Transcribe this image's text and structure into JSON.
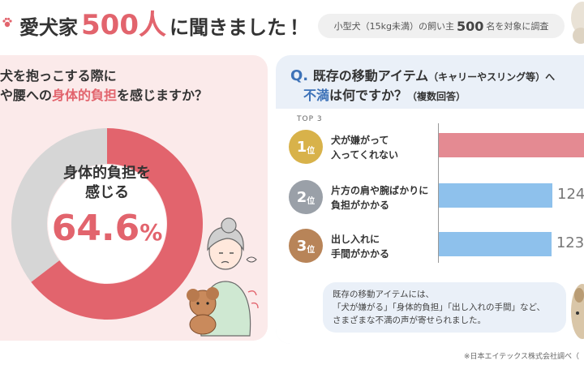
{
  "header": {
    "title_prefix": "愛犬家",
    "title_number": "500人",
    "title_suffix": "に聞きました",
    "title_mark": "！",
    "survey_pre": "小型犬（15kg未満）の飼い主",
    "survey_number": "500",
    "survey_post": "名を対象に調査"
  },
  "left": {
    "question_line1": "犬を抱っこする際に",
    "question_line2_pre": "や腰への",
    "question_line2_hl": "身体的負担",
    "question_line2_post": "を感じますか？",
    "center_line1": "身体的負担を",
    "center_line2": "感じる",
    "center_value": "64.6",
    "center_unit": "%"
  },
  "right": {
    "q_mark": "Q.",
    "q_line1": "既存の移動アイテム",
    "q_line1_small": "（キャリーやスリング等）へ",
    "q_line2_hl": "不満",
    "q_line2": "は何ですか？",
    "q_line2_small": "（複数回答）",
    "top_label": "TOP 3",
    "ranks": [
      {
        "num": "1",
        "suffix": "位",
        "line1": "犬が嫌がって",
        "line2": "入ってくれない"
      },
      {
        "num": "2",
        "suffix": "位",
        "line1": "片方の肩や腕ばかりに",
        "line2": "負担がかかる"
      },
      {
        "num": "3",
        "suffix": "位",
        "line1": "出し入れに",
        "line2": "手間がかかる"
      }
    ],
    "bubble_line1": "既存の移動アイテムには、",
    "bubble_line2": "「犬が嫌がる」「身体的負担」「出し入れの手間」など、",
    "bubble_line3": "さまざまな不満の声が寄せられました。"
  },
  "footnote": "※日本エイテックス株式会社調べ（",
  "colors": {
    "accent_red": "#e2646d",
    "accent_blue": "#3d72b8",
    "bar_red": "#e48a92",
    "bar_blue": "#8ec1ec",
    "donut_gray": "#d6d6d6",
    "gold": "#d8b24a",
    "silver": "#9aa0a8",
    "bronze": "#b88458"
  },
  "icons": [
    "paw-icon",
    "woman-holding-dog-illustration",
    "dog-photo"
  ],
  "chart_data": [
    {
      "type": "pie",
      "title": "",
      "series": [
        {
          "name": "身体的負担を感じる",
          "values": [
            64.6
          ]
        }
      ]
    },
    {
      "type": "bar",
      "title": "",
      "orientation": "horizontal",
      "categories": [
        "犬が嫌がって入ってくれない",
        "片方の肩や腕ばかりに負担がかかる",
        "出し入れに手間がかかる"
      ],
      "values": [
        null,
        124,
        123
      ],
      "xlabel": "",
      "ylabel": ""
    }
  ]
}
